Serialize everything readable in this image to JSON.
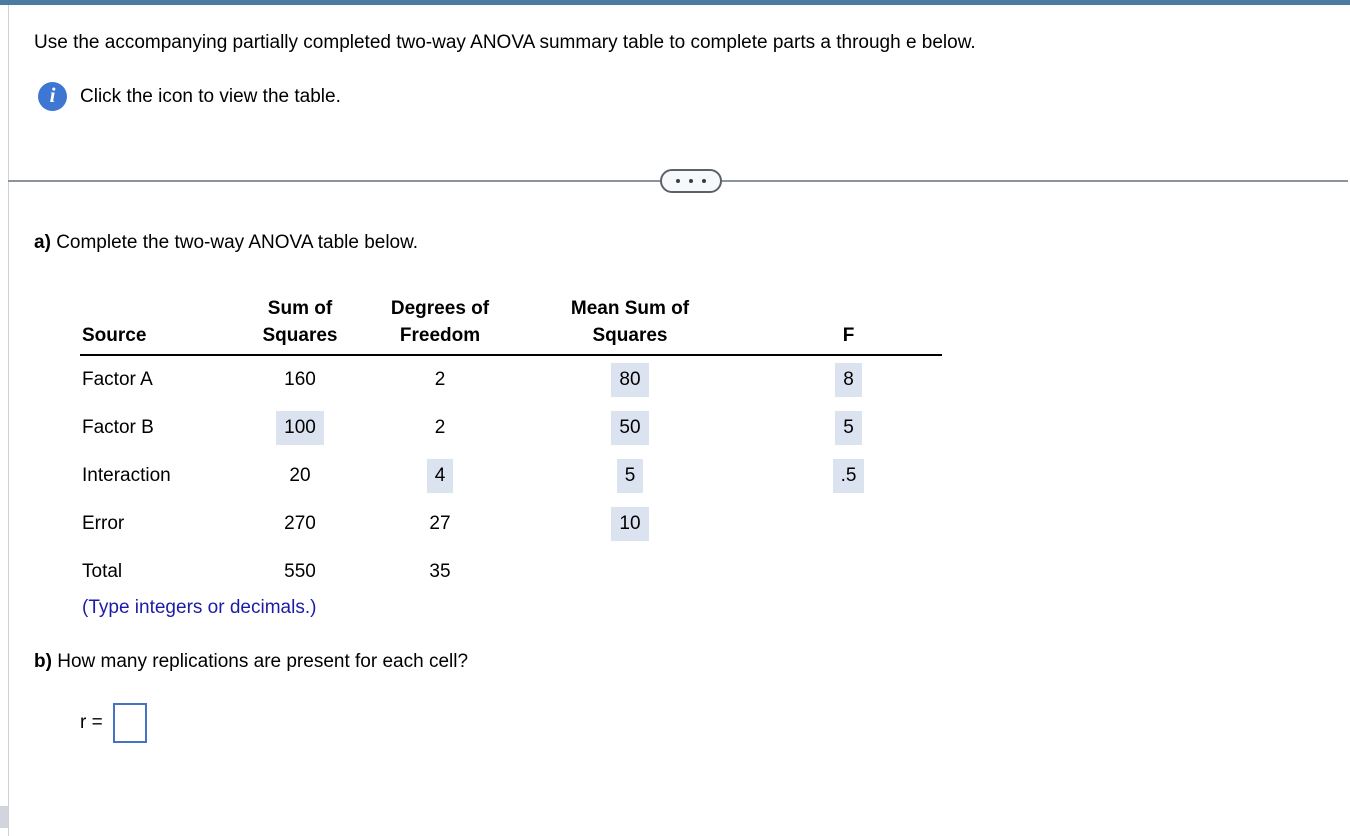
{
  "question": {
    "prompt": "Use the accompanying partially completed two-way ANOVA summary table to complete parts a through e below.",
    "info_instruction": "Click the icon to view the table.",
    "info_icon_glyph": "i"
  },
  "part_a": {
    "label": "a)",
    "text": "Complete the two-way ANOVA table below.",
    "note": "(Type integers or decimals.)"
  },
  "anova": {
    "col_headers": {
      "source": "Source",
      "ss_line1": "Sum of",
      "ss_line2": "Squares",
      "df_line1": "Degrees of",
      "df_line2": "Freedom",
      "mss_line1": "Mean Sum of",
      "mss_line2": "Squares",
      "f": "F"
    },
    "rows": [
      {
        "source": "Factor A",
        "ss": "160",
        "df": "2",
        "mss": "80",
        "f": "8"
      },
      {
        "source": "Factor B",
        "ss": "100",
        "df": "2",
        "mss": "50",
        "f": "5"
      },
      {
        "source": "Interaction",
        "ss": "20",
        "df": "4",
        "mss": "5",
        "f": ".5"
      },
      {
        "source": "Error",
        "ss": "270",
        "df": "27",
        "mss": "10",
        "f": ""
      },
      {
        "source": "Total",
        "ss": "550",
        "df": "35",
        "mss": "",
        "f": ""
      }
    ]
  },
  "part_b": {
    "label": "b)",
    "text": "How many replications are present for each cell?",
    "r_label": "r =",
    "r_value": ""
  },
  "colors": {
    "top_bar": "#4a7ba3",
    "answer_cell_bg": "#dce3f0",
    "answer_box_border": "#4472c4",
    "note_text": "#1e1ba6",
    "info_icon_bg": "#3d76d3"
  }
}
